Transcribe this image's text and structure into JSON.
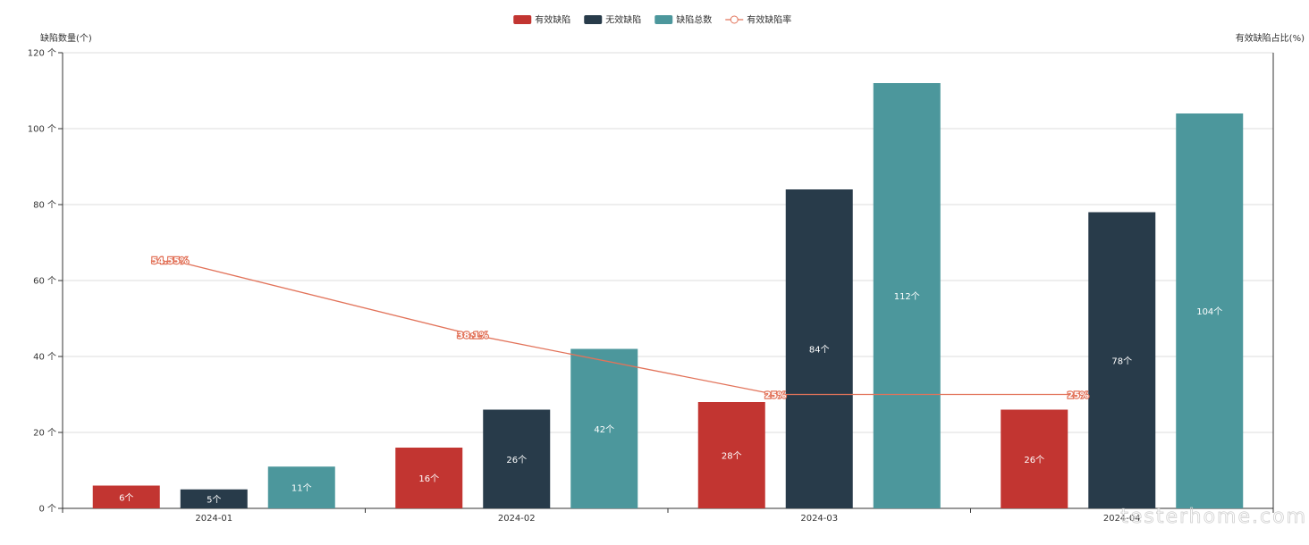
{
  "chart_data": {
    "type": "bar",
    "categories": [
      "2024-01",
      "2024-02",
      "2024-03",
      "2024-04"
    ],
    "series": [
      {
        "name": "有效缺陷",
        "kind": "bar",
        "axis": "left",
        "color": "#c23531",
        "values": [
          6,
          16,
          28,
          26
        ],
        "labels": [
          "6个",
          "16个",
          "28个",
          "26个"
        ]
      },
      {
        "name": "无效缺陷",
        "kind": "bar",
        "axis": "left",
        "color": "#283b4a",
        "values": [
          5,
          26,
          84,
          78
        ],
        "labels": [
          "5个",
          "26个",
          "84个",
          "78个"
        ]
      },
      {
        "name": "缺陷总数",
        "kind": "bar",
        "axis": "left",
        "color": "#4c979c",
        "values": [
          11,
          42,
          112,
          104
        ],
        "labels": [
          "11个",
          "42个",
          "112个",
          "104个"
        ]
      },
      {
        "name": "有效缺陷率",
        "kind": "line",
        "axis": "right",
        "color": "#e2735a",
        "values": [
          54.55,
          38.1,
          25,
          25
        ],
        "labels": [
          "54.55%",
          "38.1%",
          "25%",
          "25%"
        ]
      }
    ],
    "ylabel_left": "缺陷数量(个)",
    "ylabel_right": "有效缺陷占比(%)",
    "ylim": [
      0,
      120
    ],
    "yticks": [
      "0 个",
      "20 个",
      "40 个",
      "60 个",
      "80 个",
      "100 个",
      "120 个"
    ],
    "grid": true,
    "legend_position": "top-center"
  },
  "watermark": "testerhome.com"
}
